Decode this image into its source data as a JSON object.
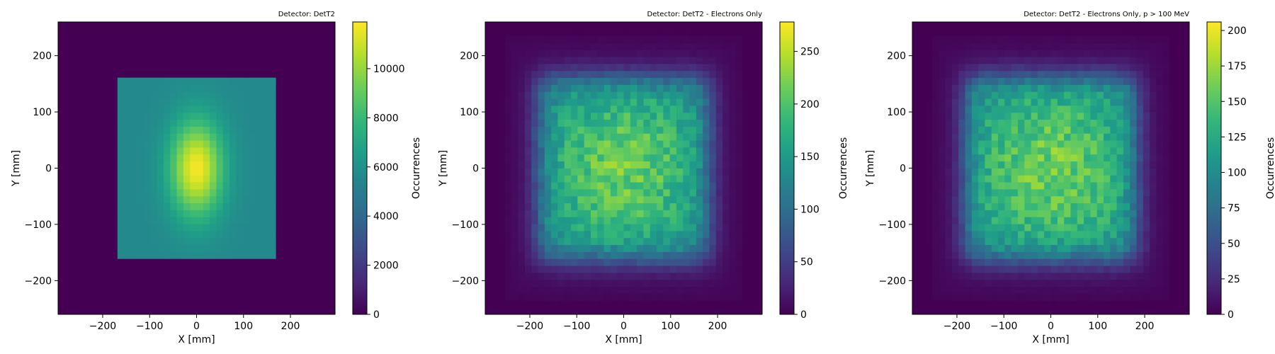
{
  "chart_data": [
    {
      "type": "heatmap",
      "title": "Detector: DetT2",
      "xlabel": "X [mm]",
      "ylabel": "Y [mm]",
      "xlim": [
        -295,
        295
      ],
      "ylim": [
        -260,
        260
      ],
      "xticks": [
        "−200",
        "−100",
        "0",
        "100",
        "200"
      ],
      "yticks": [
        "200",
        "100",
        "0",
        "−100",
        "−200"
      ],
      "grid": false,
      "colormap": "viridis",
      "bins": [
        42,
        42
      ],
      "colorbar": {
        "label": "Occurrences",
        "range": [
          0,
          11900
        ],
        "ticks": [
          "0",
          "2000",
          "4000",
          "6000",
          "8000",
          "10000"
        ],
        "tick_values": [
          0,
          2000,
          4000,
          6000,
          8000,
          10000
        ]
      },
      "distribution": {
        "shape": "square plateau with central gaussian peak",
        "plateau_x": [
          -175,
          175
        ],
        "plateau_y": [
          -155,
          155
        ],
        "plateau_value": 5600,
        "peak_center": [
          0,
          0
        ],
        "peak_value": 11800,
        "peak_sigma": [
          40,
          60
        ]
      }
    },
    {
      "type": "heatmap",
      "title": "Detector: DetT2 - Electrons Only",
      "xlabel": "X [mm]",
      "ylabel": "Y [mm]",
      "xlim": [
        -295,
        295
      ],
      "ylim": [
        -260,
        260
      ],
      "xticks": [
        "−200",
        "−100",
        "0",
        "100",
        "200"
      ],
      "yticks": [
        "200",
        "100",
        "0",
        "−100",
        "−200"
      ],
      "grid": false,
      "colormap": "viridis",
      "bins": [
        42,
        42
      ],
      "colorbar": {
        "label": "Occurrences",
        "range": [
          0,
          278
        ],
        "ticks": [
          "0",
          "50",
          "100",
          "150",
          "200",
          "250"
        ],
        "tick_values": [
          0,
          50,
          100,
          150,
          200,
          250
        ]
      },
      "distribution": {
        "shape": "noisy square with soft edges",
        "core_x": [
          -170,
          170
        ],
        "core_y": [
          -150,
          150
        ],
        "center_value": 215,
        "edge_value": 140,
        "halo_extent": 230
      }
    },
    {
      "type": "heatmap",
      "title": "Detector: DetT2 - Electrons Only, p > 100 MeV",
      "xlabel": "X [mm]",
      "ylabel": "Y [mm]",
      "xlim": [
        -295,
        295
      ],
      "ylim": [
        -260,
        260
      ],
      "xticks": [
        "−200",
        "−100",
        "0",
        "100",
        "200"
      ],
      "yticks": [
        "200",
        "100",
        "0",
        "−100",
        "−200"
      ],
      "grid": false,
      "colormap": "viridis",
      "bins": [
        42,
        42
      ],
      "colorbar": {
        "label": "Occurrences",
        "range": [
          0,
          206
        ],
        "ticks": [
          "0",
          "25",
          "50",
          "75",
          "100",
          "125",
          "150",
          "175",
          "200"
        ],
        "tick_values": [
          0,
          25,
          50,
          75,
          100,
          125,
          150,
          175,
          200
        ]
      },
      "distribution": {
        "shape": "noisy square with soft edges",
        "core_x": [
          -170,
          170
        ],
        "core_y": [
          -150,
          150
        ],
        "center_value": 160,
        "edge_value": 110,
        "halo_extent": 230
      }
    }
  ]
}
